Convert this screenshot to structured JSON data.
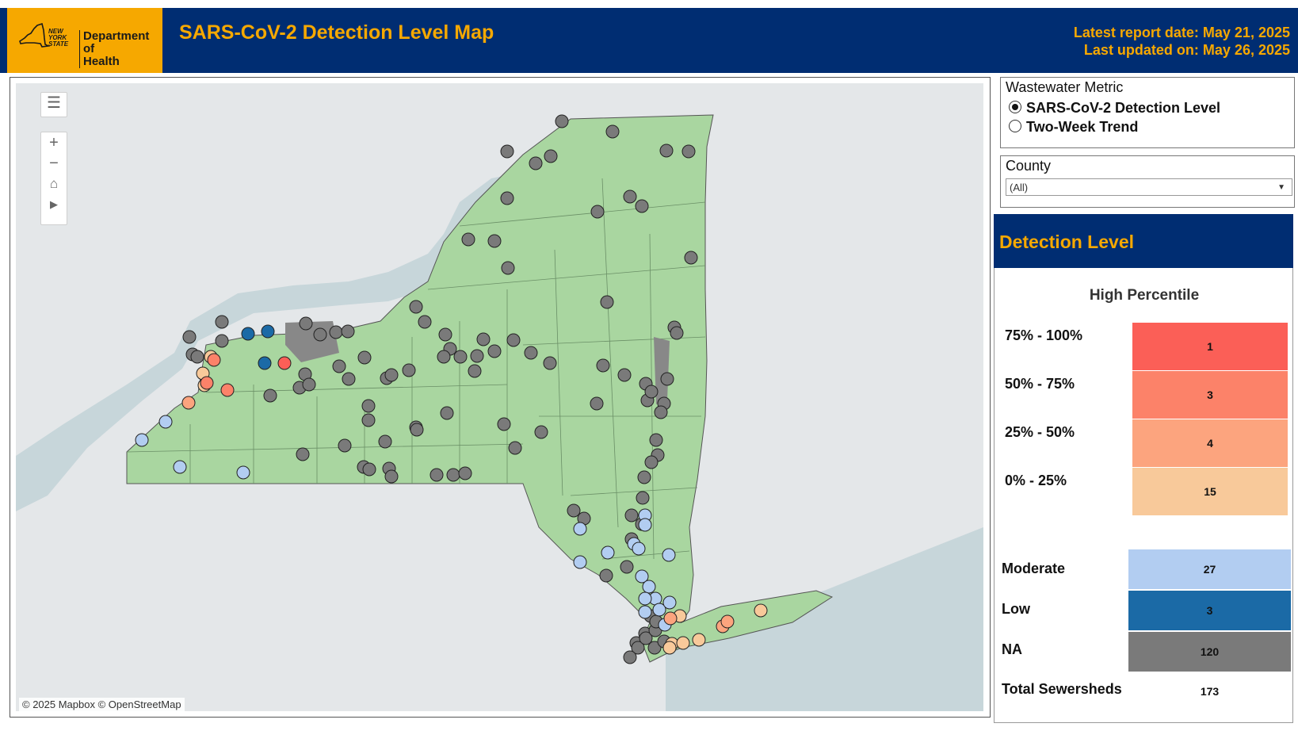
{
  "header": {
    "logo_state_text": [
      "NEW",
      "YORK",
      "STATE"
    ],
    "logo_department": [
      "Department of",
      "Health"
    ],
    "title": "SARS-CoV-2 Detection Level Map",
    "latest_report": "Latest report date: May 21, 2025",
    "last_updated": "Last updated on: May 26, 2025",
    "colors": {
      "navy": "#002d72",
      "gold": "#f6a800"
    }
  },
  "map": {
    "controls": [
      "layers-icon",
      "zoom-in-icon",
      "zoom-out-icon",
      "home-icon",
      "pan-icon"
    ],
    "attribution": "© 2025 Mapbox © OpenStreetMap"
  },
  "filters": {
    "metric_title": "Wastewater Metric",
    "metric_options": [
      {
        "label": "SARS-CoV-2 Detection Level",
        "selected": true
      },
      {
        "label": "Two-Week Trend",
        "selected": false
      }
    ],
    "county_title": "County",
    "county_value": "(All)"
  },
  "legend": {
    "title": "Detection Level",
    "subtitle": "High Percentile",
    "high_levels": [
      {
        "label": "75% - 100%",
        "count": "1",
        "color": "#fb5f57"
      },
      {
        "label": "50% - 75%",
        "count": "3",
        "color": "#fc8269"
      },
      {
        "label": "25% - 50%",
        "count": "4",
        "color": "#fca47e"
      },
      {
        "label": "0% - 25%",
        "count": "15",
        "color": "#f8c99a"
      }
    ],
    "other_levels": [
      {
        "label": "Moderate",
        "count": "27",
        "color": "#b2cdf1"
      },
      {
        "label": "Low",
        "count": "3",
        "color": "#1b6aa6"
      },
      {
        "label": "NA",
        "count": "120",
        "color": "#7a7a7a"
      }
    ],
    "total_label": "Total Sewersheds",
    "total_count": "173"
  }
}
